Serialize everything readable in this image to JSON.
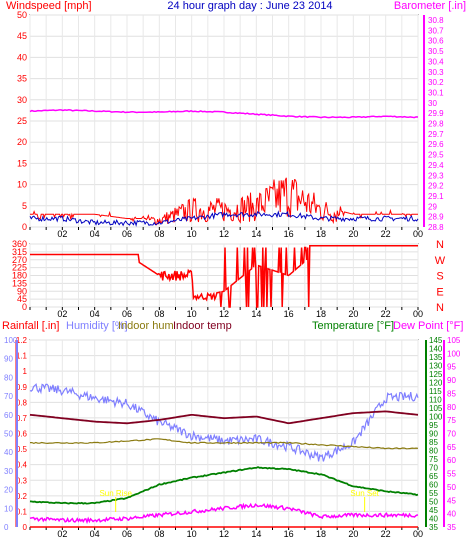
{
  "title": "24 hour graph day : June 23 2014",
  "colors": {
    "red": "#ff0000",
    "blue": "#0000c0",
    "magenta": "#ff00ff",
    "maroon": "#800020",
    "olive": "#8a7a10",
    "green": "#008000",
    "lavender": "#8080ff",
    "yellow": "#ffff00"
  },
  "time_ticks": [
    "02",
    "04",
    "06",
    "08",
    "10",
    "12",
    "14",
    "16",
    "18",
    "20",
    "22",
    "00"
  ],
  "panel1": {
    "left_label": "Windspeed [mph]",
    "right_label": "Barometer [.in]",
    "left_ticks": [
      "50",
      "45",
      "40",
      "35",
      "30",
      "25",
      "20",
      "15",
      "10",
      "5",
      "0"
    ],
    "right_ticks": [
      "30.8",
      "30.7",
      "30.6",
      "30.5",
      "30.4",
      "30.3",
      "30.2",
      "30.1",
      "30",
      "29.9",
      "29.8",
      "29.7",
      "29.6",
      "29.5",
      "29.4",
      "29.3",
      "29.2",
      "29.1",
      "29",
      "28.9",
      "28.8"
    ]
  },
  "panel2": {
    "right_label": [
      "N",
      "W",
      "S",
      "E",
      "N"
    ],
    "left_ticks": [
      "360",
      "315",
      "270",
      "225",
      "180",
      "135",
      "90",
      "45",
      "0"
    ]
  },
  "panel3": {
    "labels": {
      "rain": "Rainfall [.in]",
      "humidity": "Humidity [%]",
      "indoor_hum": "Indoor hum",
      "indoor_temp": "Indoor temp",
      "temperature": "Temperature [°F]",
      "dew_point": "Dew Point [°F]"
    },
    "rain_ticks": [
      "1.2",
      "1.1",
      "1",
      "0.9",
      "0.8",
      "0.7",
      "0.6",
      "0.5",
      "0.4",
      "0.3",
      "0.2",
      "0.1",
      "0"
    ],
    "hum_ticks": [
      "100",
      "90",
      "80",
      "70",
      "60",
      "50",
      "40",
      "30",
      "20",
      "10",
      "0"
    ],
    "temp_ticks": [
      "145",
      "140",
      "135",
      "130",
      "125",
      "120",
      "115",
      "110",
      "105",
      "100",
      "95",
      "90",
      "85",
      "80",
      "75",
      "70",
      "65",
      "60",
      "55",
      "50",
      "45",
      "40",
      "35"
    ],
    "dew_ticks": [
      "105",
      "100",
      "95",
      "90",
      "85",
      "80",
      "75",
      "70",
      "65",
      "60",
      "55",
      "50",
      "45",
      "40",
      "35"
    ],
    "small_labels": [
      "Sun Rise",
      "Sun Set"
    ]
  },
  "chart_data": [
    {
      "type": "line",
      "title": "24 hour graph day : June 23 2014",
      "xlabel": "",
      "ylabel": "Windspeed [mph]",
      "ylim": [
        0,
        50
      ],
      "y2label": "Barometer [.in]",
      "y2lim": [
        28.8,
        30.8
      ],
      "x": [
        "00",
        "02",
        "04",
        "06",
        "08",
        "10",
        "12",
        "14",
        "16",
        "18",
        "20",
        "22",
        "00"
      ],
      "series": [
        {
          "name": "Windspeed [mph] (gust)",
          "values": [
            3,
            3,
            3,
            2,
            2,
            5,
            5,
            6,
            10,
            5,
            3,
            3,
            3
          ]
        },
        {
          "name": "Windspeed [mph] (average)",
          "values": [
            2,
            2,
            1,
            1,
            1,
            2,
            3,
            3,
            3,
            2,
            2,
            2,
            2
          ]
        },
        {
          "name": "Barometer [.in]",
          "values": [
            29.92,
            29.93,
            29.92,
            29.91,
            29.91,
            29.92,
            29.91,
            29.89,
            29.87,
            29.86,
            29.86,
            29.87,
            29.86
          ]
        }
      ]
    },
    {
      "type": "line",
      "xlabel": "",
      "ylabel": "Wind direction",
      "ylim": [
        0,
        360
      ],
      "x": [
        "00",
        "02",
        "04",
        "06",
        "08",
        "10",
        "12",
        "14",
        "16",
        "18",
        "20",
        "22",
        "00"
      ],
      "series": [
        {
          "name": "Wind direction",
          "values": [
            300,
            300,
            300,
            300,
            180,
            50,
            90,
            240,
            180,
            340,
            340,
            340,
            340
          ]
        }
      ]
    },
    {
      "type": "line",
      "xlabel": "",
      "ylabel": "Temperature [°F]",
      "ylim": [
        35,
        145
      ],
      "x": [
        "00",
        "02",
        "04",
        "06",
        "08",
        "10",
        "12",
        "14",
        "16",
        "18",
        "20",
        "22",
        "00"
      ],
      "series": [
        {
          "name": "Rainfall [.in]",
          "values": [
            0,
            0,
            0,
            0,
            0,
            0,
            0,
            0,
            0,
            0,
            0,
            0,
            0
          ]
        },
        {
          "name": "Humidity [%]",
          "values": [
            75,
            73,
            69,
            66,
            56,
            49,
            46,
            47,
            43,
            37,
            45,
            69,
            70
          ]
        },
        {
          "name": "Indoor hum",
          "values": [
            45,
            45,
            45,
            46,
            47,
            45,
            45,
            45,
            45,
            44,
            43,
            42,
            42
          ]
        },
        {
          "name": "Indoor temp",
          "values": [
            101,
            99,
            97,
            96,
            98,
            101,
            99,
            100,
            96,
            99,
            102,
            103,
            101
          ]
        },
        {
          "name": "Temperature [°F]",
          "values": [
            50,
            49,
            49,
            52,
            60,
            64,
            67,
            70,
            69,
            66,
            59,
            56,
            54
          ]
        },
        {
          "name": "Dew Point [°F]",
          "values": [
            40,
            39,
            39,
            40,
            42,
            44,
            46,
            48,
            46,
            41,
            42,
            42,
            42
          ]
        }
      ]
    }
  ]
}
